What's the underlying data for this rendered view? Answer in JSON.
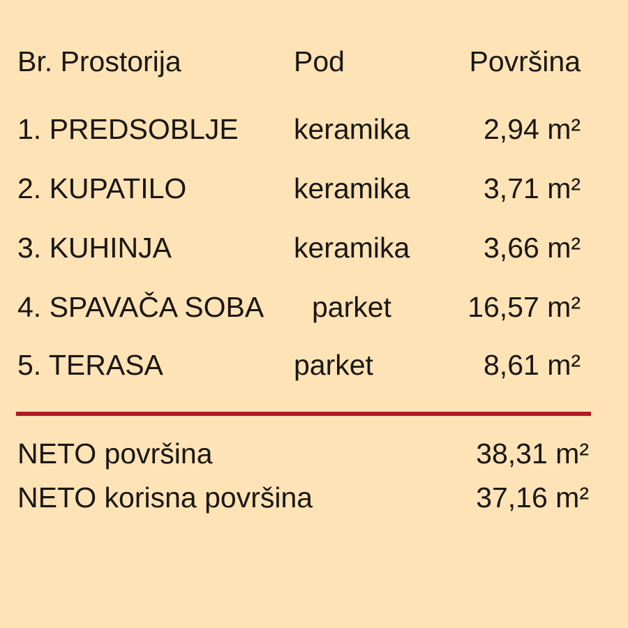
{
  "header": {
    "col_room": "Br. Prostorija",
    "col_floor": "Pod",
    "col_area": "Površina"
  },
  "rows": [
    {
      "room": "1. PREDSOBLJE",
      "floor": "keramika",
      "area": "2,94 m²"
    },
    {
      "room": "2. KUPATILO",
      "floor": "keramika",
      "area": "3,71 m²"
    },
    {
      "room": "3. KUHINJA",
      "floor": "keramika",
      "area": "3,66 m²"
    },
    {
      "room": "4. SPAVAČA SOBA",
      "floor": "parket",
      "area": "16,57 m²"
    },
    {
      "room": "5. TERASA",
      "floor": "parket",
      "area": "8,61 m²"
    }
  ],
  "totals": [
    {
      "label": "NETO površina",
      "value": "38,31 m²"
    },
    {
      "label": "NETO korisna površina",
      "value": "37,16 m²"
    }
  ],
  "colors": {
    "background": "#fde3b5",
    "divider": "#b01a24",
    "text": "#1a1614"
  }
}
